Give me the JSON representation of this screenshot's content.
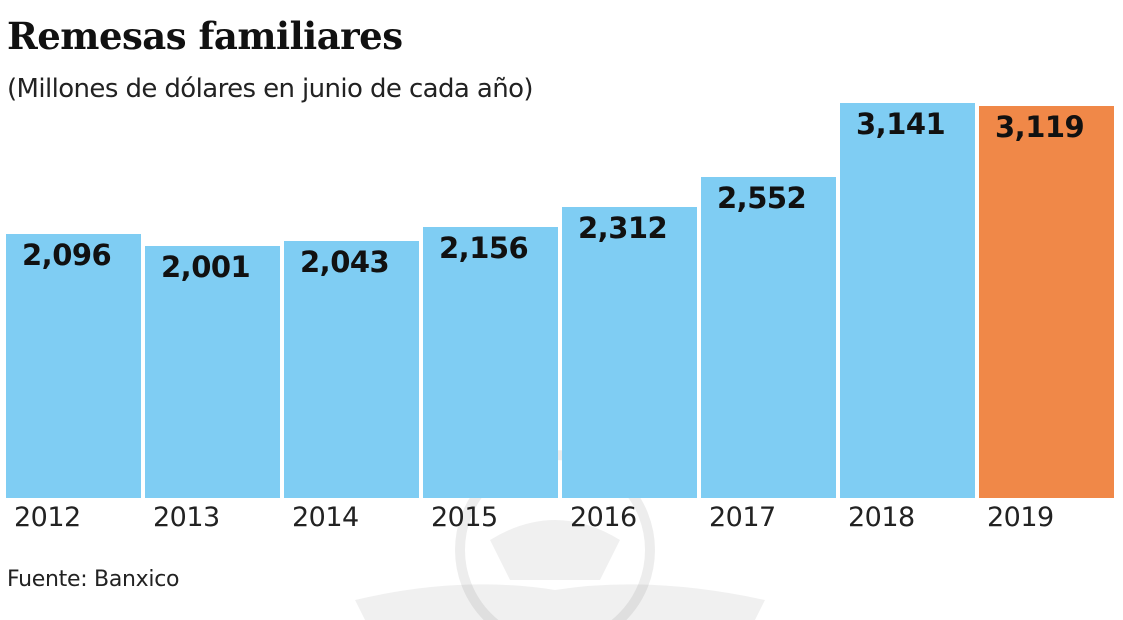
{
  "chart_data": {
    "type": "bar",
    "title": "Remesas familiares",
    "subtitle": "(Millones de dólares en junio de cada año)",
    "xlabel": "",
    "ylabel": "Millones de dólares",
    "categories": [
      "2012",
      "2013",
      "2014",
      "2015",
      "2016",
      "2017",
      "2018",
      "2019"
    ],
    "values": [
      2096,
      2001,
      2043,
      2156,
      2312,
      2552,
      3141,
      3119
    ],
    "value_labels": [
      "2,096",
      "2,001",
      "2,043",
      "2,156",
      "2,312",
      "2,552",
      "3,141",
      "3,119"
    ],
    "colors": [
      "#7fcdf3",
      "#7fcdf3",
      "#7fcdf3",
      "#7fcdf3",
      "#7fcdf3",
      "#7fcdf3",
      "#7fcdf3",
      "#f08848"
    ],
    "highlight_color": "#f08848",
    "base_color": "#7fcdf3",
    "grid": false,
    "legend": "none",
    "ylim": [
      0,
      3141
    ]
  },
  "source": "Fuente: Banxico"
}
